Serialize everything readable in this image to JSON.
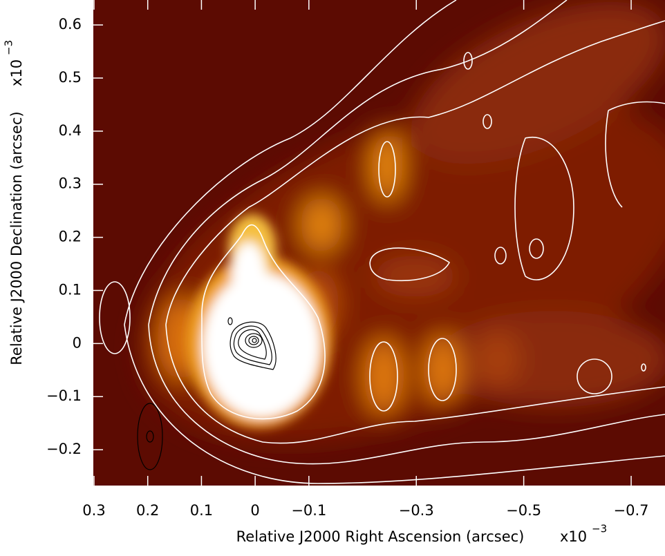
{
  "chart_data": {
    "type": "image",
    "xlabel": "Relative J2000 Right Ascension (arcsec)",
    "ylabel": "Relative J2000 Declination (arcsec)",
    "x_scale": {
      "base": "x10",
      "exponent": "−3"
    },
    "y_scale": {
      "base": "x10",
      "exponent": "−3"
    },
    "xlim": [
      0.3013,
      -0.763
    ],
    "ylim": [
      -0.2675,
      0.647
    ],
    "xticks": [
      0.3,
      0.2,
      0.1,
      0,
      {
        "value": -0.1,
        "label": "−0.1"
      },
      {
        "value": -0.3,
        "label": "−0.3"
      },
      {
        "value": -0.5,
        "label": "−0.5"
      },
      {
        "value": -0.7,
        "label": "−0.7"
      }
    ],
    "yticks": [
      {
        "value": -0.2,
        "label": "−0.2"
      },
      {
        "value": -0.1,
        "label": "−0.1"
      },
      0,
      0.1,
      0.2,
      0.3,
      0.4,
      0.5,
      0.6
    ]
  }
}
